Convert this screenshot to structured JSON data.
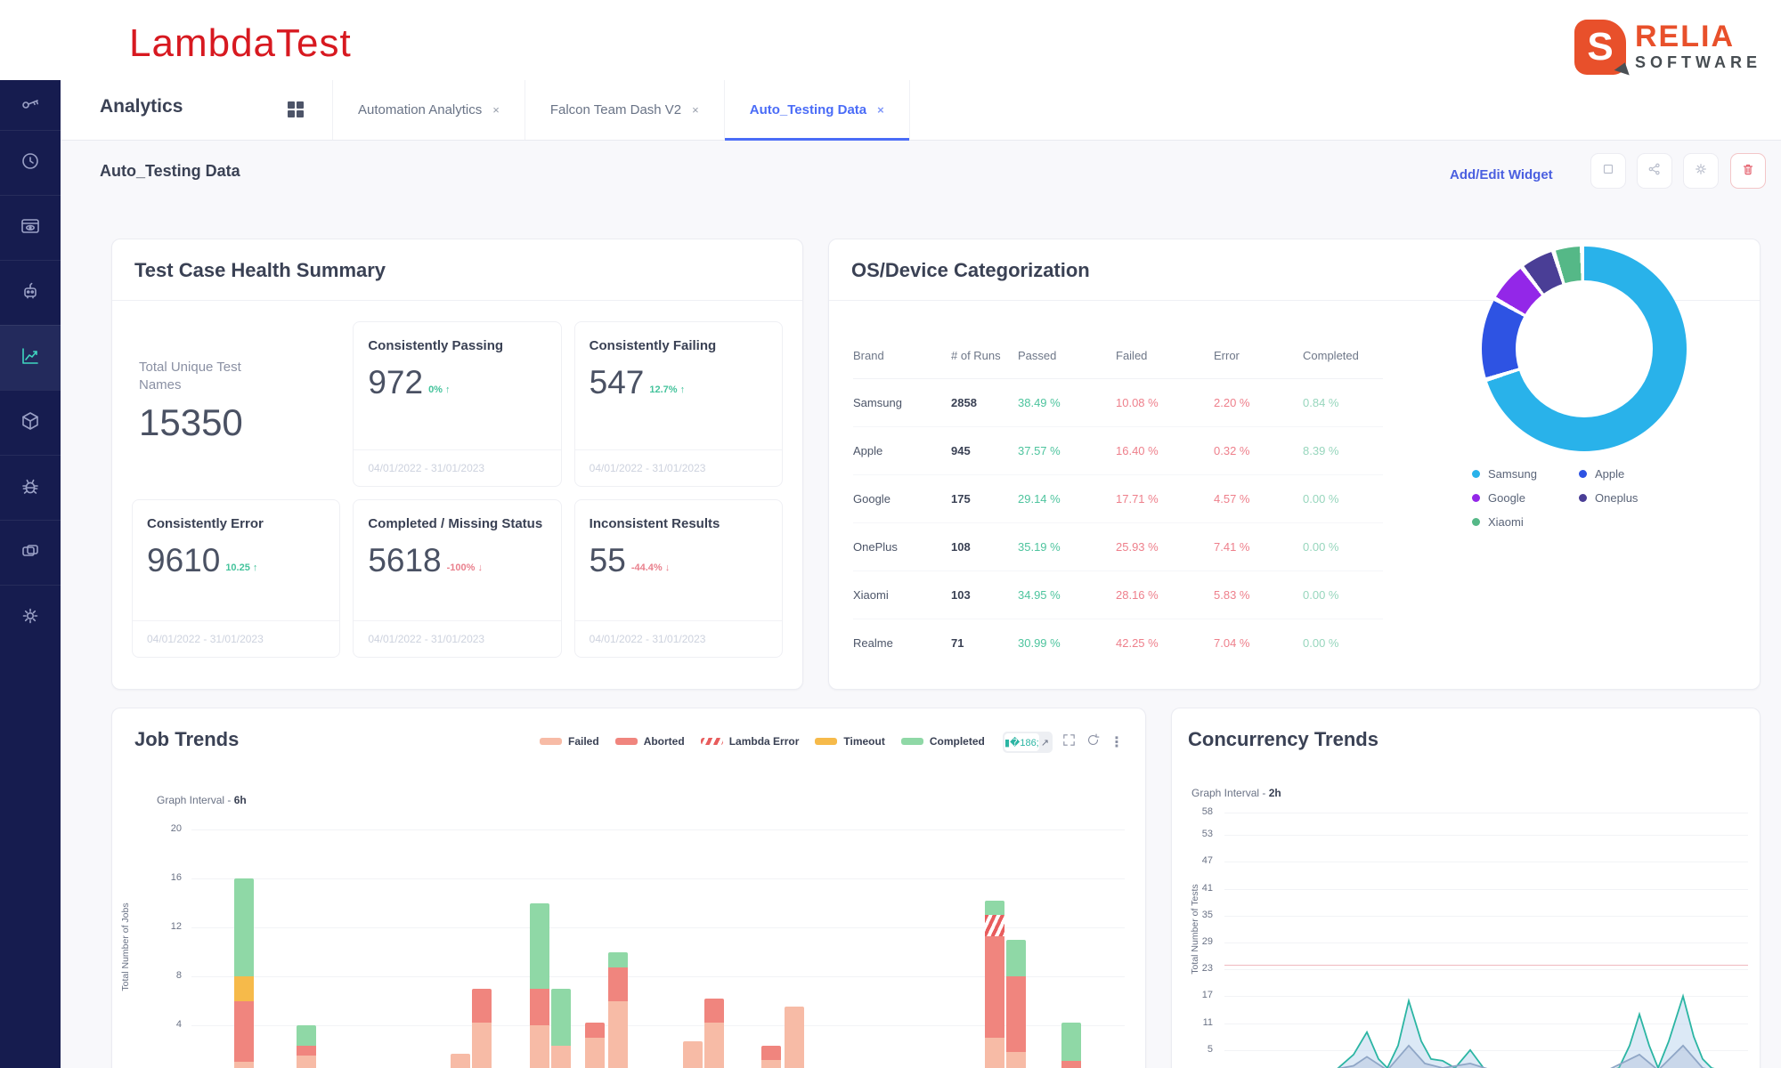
{
  "header": {
    "brand": "LambdaTest",
    "logo": {
      "mark": "S",
      "word1": "RELIA",
      "word2": "SOFTWARE"
    }
  },
  "nav": {
    "section_title": "Analytics",
    "close_glyph": "×",
    "tabs": [
      {
        "label": "Automation Analytics",
        "active": false
      },
      {
        "label": "Falcon Team Dash V2",
        "active": false
      },
      {
        "label": "Auto_Testing Data",
        "active": true
      }
    ]
  },
  "toolbar": {
    "page_title": "Auto_Testing Data",
    "add_edit_label": "Add/Edit Widget"
  },
  "test_case_health": {
    "title": "Test Case Health Summary",
    "total_label": "Total Unique Test Names",
    "total_value": "15350",
    "stats": [
      {
        "label": "Consistently Passing",
        "value": "972",
        "delta": "0% ↑",
        "delta_color": "green",
        "dates": "04/01/2022 - 31/01/2023"
      },
      {
        "label": "Consistently Failing",
        "value": "547",
        "delta": "12.7% ↑",
        "delta_color": "green",
        "dates": "04/01/2022 - 31/01/2023"
      },
      {
        "label": "Consistently Error",
        "value": "9610",
        "delta": "10.25 ↑",
        "delta_color": "green",
        "dates": "04/01/2022 - 31/01/2023"
      },
      {
        "label": "Completed / Missing Status",
        "value": "5618",
        "delta": "-100% ↓",
        "delta_color": "red",
        "dates": "04/01/2022 - 31/01/2023"
      },
      {
        "label": "Inconsistent Results",
        "value": "55",
        "delta": "-44.4% ↓",
        "delta_color": "red",
        "dates": "04/01/2022 - 31/01/2023"
      }
    ]
  },
  "os_device": {
    "title": "OS/Device Categorization",
    "headers": [
      "Brand",
      "# of Runs",
      "Passed",
      "Failed",
      "Error",
      "Completed"
    ],
    "rows": [
      [
        "Samsung",
        "2858",
        "38.49 %",
        "10.08 %",
        "2.20 %",
        "0.84 %"
      ],
      [
        "Apple",
        "945",
        "37.57 %",
        "16.40 %",
        "0.32 %",
        "8.39 %"
      ],
      [
        "Google",
        "175",
        "29.14 %",
        "17.71 %",
        "4.57 %",
        "0.00 %"
      ],
      [
        "OnePlus",
        "108",
        "35.19 %",
        "25.93 %",
        "7.41 %",
        "0.00 %"
      ],
      [
        "Xiaomi",
        "103",
        "34.95 %",
        "28.16 %",
        "5.83 %",
        "0.00 %"
      ],
      [
        "Realme",
        "71",
        "30.99 %",
        "42.25 %",
        "7.04 %",
        "0.00 %"
      ]
    ],
    "chart_data": {
      "type": "pie",
      "title": "OS/Device Categorization",
      "segments": [
        {
          "label": "Samsung",
          "color": "#29B2EA",
          "percent": 70.5
        },
        {
          "label": "Apple",
          "color": "#2E53E3",
          "percent": 13.0
        },
        {
          "label": "Google",
          "color": "#9327E8",
          "percent": 6.5
        },
        {
          "label": "Oneplus",
          "color": "#4A3E96",
          "percent": 5.5
        },
        {
          "label": "Xiaomi",
          "color": "#55B887",
          "percent": 4.5
        }
      ],
      "legend_position": "bottom"
    }
  },
  "job_trends": {
    "title": "Job Trends",
    "interval_label": "Graph Interval -",
    "interval_value": "6h",
    "ylabel": "Total Number of Jobs",
    "yticks": [
      20,
      16,
      12,
      8,
      4
    ],
    "colors": {
      "failed": "#F7BBA6",
      "aborted": "#F0857E",
      "timeout": "#F6BA4A",
      "lambda_error": "#E85D5D",
      "completed": "#8FD8A6"
    },
    "legend": [
      {
        "label": "Failed",
        "key": "failed"
      },
      {
        "label": "Aborted",
        "key": "aborted"
      },
      {
        "label": "Lambda Error",
        "key": "lambda_error"
      },
      {
        "label": "Timeout",
        "key": "timeout"
      },
      {
        "label": "Completed",
        "key": "completed"
      }
    ],
    "chart_data": {
      "type": "bar",
      "stacked": true,
      "ylabel": "Total Number of Jobs",
      "ylim": [
        0,
        20
      ],
      "grid": true,
      "bars": [
        {
          "x": 274,
          "failed": 1,
          "aborted": 5,
          "timeout": 2,
          "completed": 8
        },
        {
          "x": 344,
          "failed": 1.5,
          "aborted": 0.8,
          "completed": 1.7
        },
        {
          "x": 517,
          "failed": 1.7
        },
        {
          "x": 541,
          "failed": 4.2,
          "aborted": 2.8
        },
        {
          "x": 606,
          "failed": 4,
          "aborted": 3,
          "completed": 7
        },
        {
          "x": 630,
          "failed": 2.3,
          "completed": 4.7
        },
        {
          "x": 668,
          "failed": 3,
          "aborted": 1.2
        },
        {
          "x": 694,
          "failed": 6,
          "aborted": 2.7,
          "completed": 1.3
        },
        {
          "x": 778,
          "failed": 2.7
        },
        {
          "x": 802,
          "failed": 4.2,
          "aborted": 2
        },
        {
          "x": 866,
          "failed": 1.2,
          "aborted": 1.1
        },
        {
          "x": 892,
          "failed": 5.5
        },
        {
          "x": 1117,
          "failed": 3,
          "aborted": 8.3,
          "lambda_error": 1.7,
          "completed": 1.2
        },
        {
          "x": 1141,
          "failed": 1.8,
          "aborted": 6.2,
          "completed": 3
        },
        {
          "x": 1203,
          "aborted": 1.1,
          "completed": 3.1
        }
      ]
    }
  },
  "concurrency": {
    "title": "Concurrency Trends",
    "interval_label": "Graph Interval -",
    "interval_value": "2h",
    "ylabel": "Total Number of Tests",
    "yticks": [
      58,
      53,
      47,
      41,
      35,
      29,
      23,
      17,
      11,
      5
    ],
    "chart_data": {
      "type": "area",
      "ylabel": "Total Number of Tests",
      "ylim": [
        0,
        60
      ],
      "limit_line": 24,
      "grid": true,
      "series": [
        {
          "name": "series-1",
          "color": "#2BB5A3",
          "fill": "rgba(185,212,238,0.5)",
          "points": [
            [
              1375,
              0
            ],
            [
              1480,
              0
            ],
            [
              1500,
              0.5
            ],
            [
              1520,
              4
            ],
            [
              1535,
              9
            ],
            [
              1548,
              3
            ],
            [
              1558,
              1
            ],
            [
              1570,
              6
            ],
            [
              1582,
              16
            ],
            [
              1596,
              7
            ],
            [
              1607,
              3
            ],
            [
              1620,
              2.6
            ],
            [
              1634,
              1
            ],
            [
              1651,
              5
            ],
            [
              1666,
              1
            ],
            [
              1680,
              0.3
            ],
            [
              1700,
              0
            ],
            [
              1800,
              0
            ],
            [
              1818,
              1
            ],
            [
              1830,
              6
            ],
            [
              1841,
              13
            ],
            [
              1852,
              6
            ],
            [
              1862,
              1
            ],
            [
              1874,
              7
            ],
            [
              1890,
              17
            ],
            [
              1902,
              8
            ],
            [
              1912,
              3
            ],
            [
              1922,
              1
            ],
            [
              1935,
              0.3
            ],
            [
              1960,
              0
            ]
          ]
        },
        {
          "name": "series-2",
          "color": "#8FA6C6",
          "fill": "rgba(160,175,205,0.3)",
          "points": [
            [
              1375,
              0
            ],
            [
              1480,
              0
            ],
            [
              1520,
              1.5
            ],
            [
              1535,
              3.5
            ],
            [
              1558,
              0.5
            ],
            [
              1582,
              6
            ],
            [
              1600,
              2
            ],
            [
              1620,
              1
            ],
            [
              1651,
              2
            ],
            [
              1680,
              0.2
            ],
            [
              1700,
              0
            ],
            [
              1800,
              0
            ],
            [
              1841,
              4
            ],
            [
              1862,
              0.5
            ],
            [
              1890,
              6
            ],
            [
              1912,
              1
            ],
            [
              1935,
              0
            ],
            [
              1960,
              0
            ]
          ]
        }
      ]
    }
  }
}
